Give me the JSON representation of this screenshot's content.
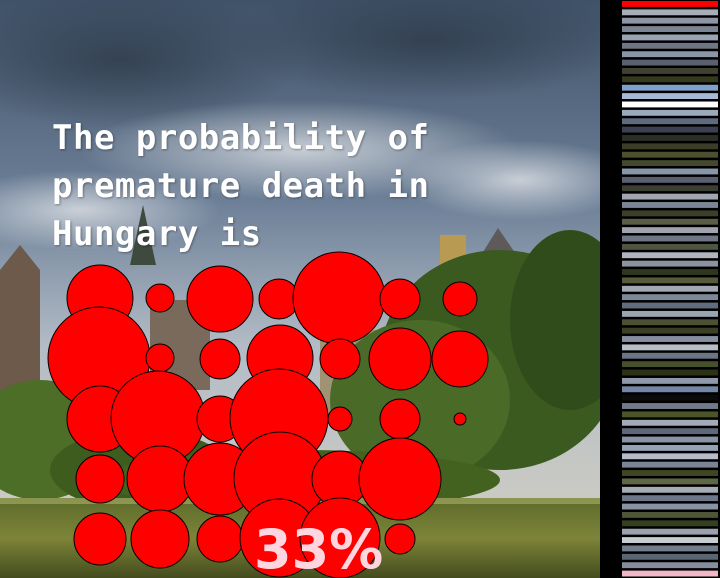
{
  "headline": "The probability of premature death in Hungary is",
  "percent_label": "33%",
  "colors": {
    "bubble": "#ff0000",
    "bubble_stroke": "#000000",
    "sky_top": "#4d6178",
    "sky_bottom": "#a7b3c0",
    "trees": "#3c5e22",
    "water": "#6f7a2e",
    "percent_text": "#ffd6e0"
  },
  "swatches": [
    "#ff0000",
    "#a8aeb8",
    "#8e96a6",
    "#7c8494",
    "#9aa3b3",
    "#6f7684",
    "#8b95a8",
    "#596170",
    "#3f4030",
    "#353a1c",
    "#7fa0c8",
    "#a6b9d6",
    "#ffffff",
    "#9ca9bb",
    "#5e6a7e",
    "#3c4050",
    "#2b2e26",
    "#3b3d28",
    "#4c5030",
    "#44482c",
    "#8796a8",
    "#596072",
    "#3b3f33",
    "#a0a7b0",
    "#7c8595",
    "#3c3f2a",
    "#5a5e44",
    "#9fa4ae",
    "#6e7686",
    "#4e5642",
    "#b0b5bc",
    "#8c93a0",
    "#30361e",
    "#555a3a",
    "#a2a8b2",
    "#7e8898",
    "#616d7e",
    "#9aa5b4",
    "#4b5234",
    "#3b3f25",
    "#858fa0",
    "#b8bec8",
    "#6b7585",
    "#46502c",
    "#2c3218",
    "#8f99a9",
    "#7286a8",
    "#0a0a0a",
    "#707a88",
    "#4c5528",
    "#a3abb8",
    "#5f6878",
    "#8894a6",
    "#95a1b4",
    "#b6bdc9",
    "#7b8494",
    "#3e4722",
    "#5d6745",
    "#a5acb6",
    "#6e778a",
    "#8a93a2",
    "#4f5638",
    "#354020",
    "#9aa2b0",
    "#c7ccd3",
    "#727c8d",
    "#5b6572",
    "#868e9d",
    "#f2b6c6"
  ]
}
